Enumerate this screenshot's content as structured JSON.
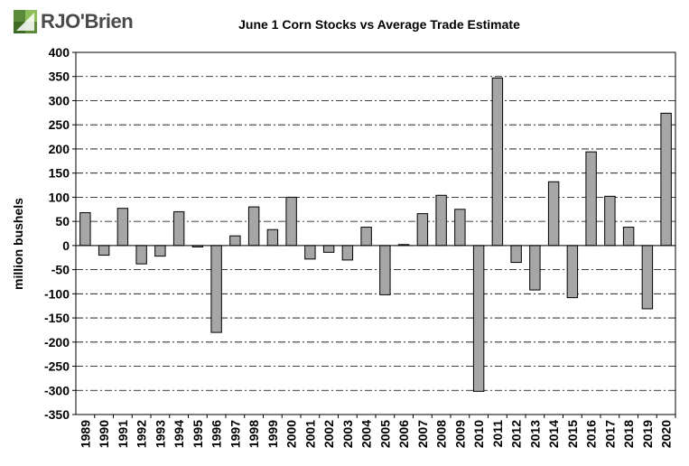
{
  "header": {
    "logo_text": "RJO'Brien",
    "logo_icon": "rjo-brien-logo-mark"
  },
  "chart_data": {
    "type": "bar",
    "title": "June 1 Corn Stocks vs Average Trade Estimate",
    "xlabel": "",
    "ylabel": "million bushels",
    "ylim": [
      -350,
      400
    ],
    "yticks": [
      400,
      350,
      300,
      250,
      200,
      150,
      100,
      50,
      0,
      -50,
      -100,
      -150,
      -200,
      -250,
      -300,
      -350
    ],
    "grid": true,
    "legend": "none",
    "bar_color": "#a6a6a6",
    "categories": [
      "1989",
      "1990",
      "1991",
      "1992",
      "1993",
      "1994",
      "1995",
      "1996",
      "1997",
      "1998",
      "1999",
      "2000",
      "2001",
      "2002",
      "2003",
      "2004",
      "2005",
      "2006",
      "2007",
      "2008",
      "2009",
      "2010",
      "2011",
      "2012",
      "2013",
      "2014",
      "2015",
      "2016",
      "2017",
      "2018",
      "2019",
      "2020"
    ],
    "values": [
      68,
      -20,
      77,
      -38,
      -22,
      70,
      -3,
      -180,
      20,
      80,
      33,
      100,
      -28,
      -14,
      -30,
      38,
      -102,
      2,
      66,
      104,
      75,
      -302,
      347,
      -35,
      -92,
      132,
      -108,
      194,
      102,
      38,
      -131,
      274
    ]
  }
}
